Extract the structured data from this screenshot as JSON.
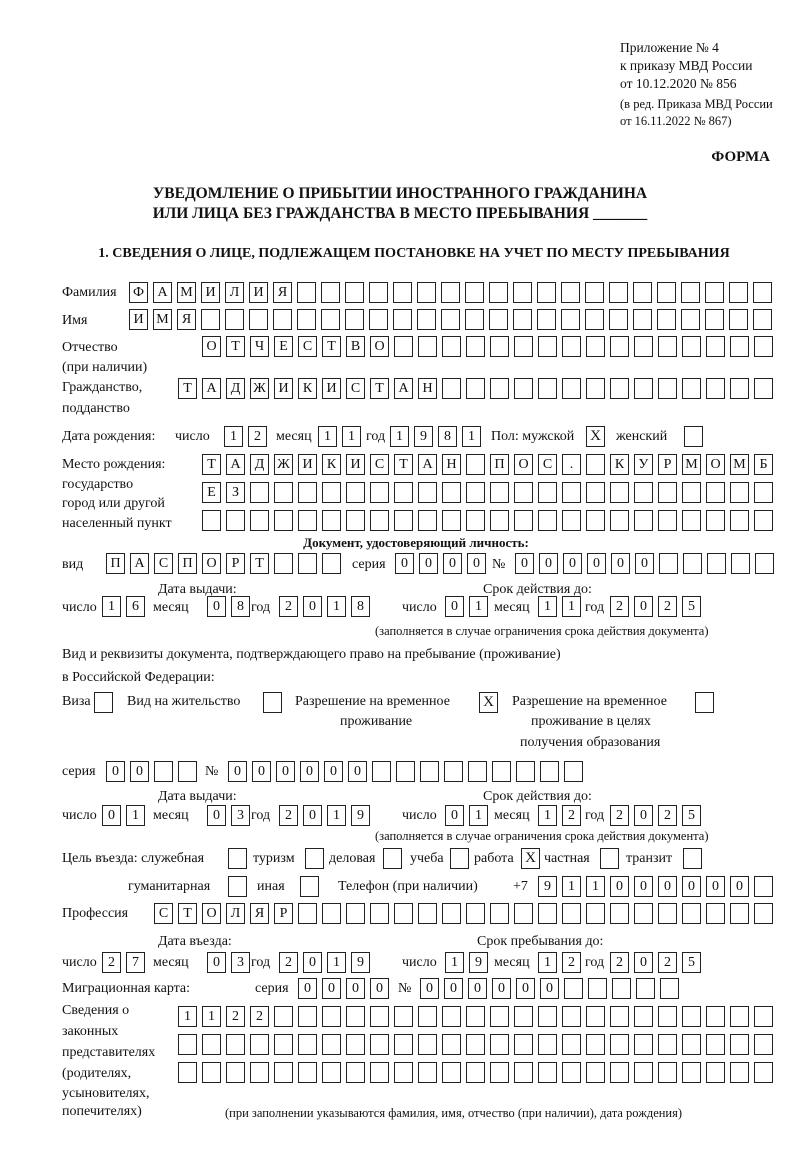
{
  "header": {
    "line1": "Приложение № 4",
    "line2": "к приказу МВД России",
    "line3": "от 10.12.2020 № 856",
    "line4": "(в ред. Приказа МВД России",
    "line5": "от 16.11.2022 № 867)",
    "form_label": "ФОРМА",
    "title1": "УВЕДОМЛЕНИЕ О ПРИБЫТИИ ИНОСТРАННОГО ГРАЖДАНИНА",
    "title2": "ИЛИ ЛИЦА БЕЗ ГРАЖДАНСТВА В МЕСТО ПРЕБЫВАНИЯ _______",
    "section1": "1. СВЕДЕНИЯ О ЛИЦЕ, ПОДЛЕЖАЩЕМ ПОСТАНОВКЕ НА УЧЕТ ПО МЕСТУ ПРЕБЫВАНИЯ"
  },
  "labels": {
    "surname": "Фамилия",
    "name": "Имя",
    "patronymic": "Отчество",
    "patronymic2": "(при наличии)",
    "citizenship": "Гражданство,",
    "citizenship2": "подданство",
    "birth_date": "Дата рождения:",
    "day": "число",
    "month": "месяц",
    "year": "год",
    "sex": "Пол: мужской",
    "female": "женский",
    "birthplace1": "Место рождения:",
    "birthplace2": "государство",
    "birthplace3": "город или другой",
    "birthplace4": "населенный пункт",
    "id_doc": "Документ, удостоверяющий личность:",
    "kind": "вид",
    "series": "серия",
    "number": "№",
    "issue_date": "Дата выдачи:",
    "valid_until": "Срок действия до:",
    "valid_note": "(заполняется в случае ограничения срока действия документа)",
    "stay_doc1": "Вид и реквизиты документа, подтверждающего право на пребывание (проживание)",
    "stay_doc2": "в Российской Федерации:",
    "visa": "Виза",
    "residence": "Вид на жительство",
    "temp_res1": "Разрешение на временное",
    "temp_res2": "проживание",
    "temp_edu1": "Разрешение на временное",
    "temp_edu2": "проживание в целях",
    "temp_edu3": "получения образования",
    "purpose": "Цель въезда: служебная",
    "tourism": "туризм",
    "business": "деловая",
    "study": "учеба",
    "work": "работа",
    "private": "частная",
    "transit": "транзит",
    "humanitarian": "гуманитарная",
    "other": "иная",
    "phone": "Телефон (при наличии)",
    "phone_prefix": "+7",
    "profession": "Профессия",
    "entry_date": "Дата въезда:",
    "stay_until": "Срок пребывания до:",
    "migration_card": "Миграционная карта:",
    "reps1": "Сведения о",
    "reps2": "законных",
    "reps3": "представителях",
    "reps4": "(родителях,",
    "reps5": "усыновителях,",
    "reps6": "попечителях)",
    "reps_note": "(при заполнении указываются фамилия, имя, отчество (при наличии), дата рождения)"
  },
  "values": {
    "surname": "ФАМИЛИЯ",
    "name": "ИМЯ",
    "patronymic": "ОТЧЕСТВО",
    "citizenship": "ТАДЖИКИСТАН",
    "birth_day": "12",
    "birth_month": "11",
    "birth_year": "1981",
    "sex_male": "X",
    "sex_female": "",
    "birthplace_1": "ТАДЖИКИСТАН ПОС. КУРМОМБ",
    "birthplace_2": "ЕЗ",
    "birthplace_3": "",
    "doc_kind": "ПАСПОРТ",
    "doc_series": "0000",
    "doc_number": "000000",
    "doc_issue_day": "16",
    "doc_issue_month": "08",
    "doc_issue_year": "2018",
    "doc_valid_day": "01",
    "doc_valid_month": "11",
    "doc_valid_year": "2025",
    "visa": "",
    "residence": "",
    "temp_res": "X",
    "temp_edu": "",
    "stay_series": "00",
    "stay_number": "000000",
    "stay_issue_day": "01",
    "stay_issue_month": "03",
    "stay_issue_year": "2019",
    "stay_valid_day": "01",
    "stay_valid_month": "12",
    "stay_valid_year": "2025",
    "p_service": "",
    "p_tourism": "",
    "p_business": "",
    "p_study": "",
    "p_work": "X",
    "p_private": "",
    "p_transit": "",
    "p_humanitarian": "",
    "p_other": "",
    "phone": "911000000",
    "profession": "СТОЛЯР",
    "entry_day": "27",
    "entry_month": "03",
    "entry_year": "2019",
    "until_day": "19",
    "until_month": "12",
    "until_year": "2025",
    "mc_series": "0000",
    "mc_number": "000000",
    "reps_1": "1122",
    "reps_2": "",
    "reps_3": ""
  }
}
